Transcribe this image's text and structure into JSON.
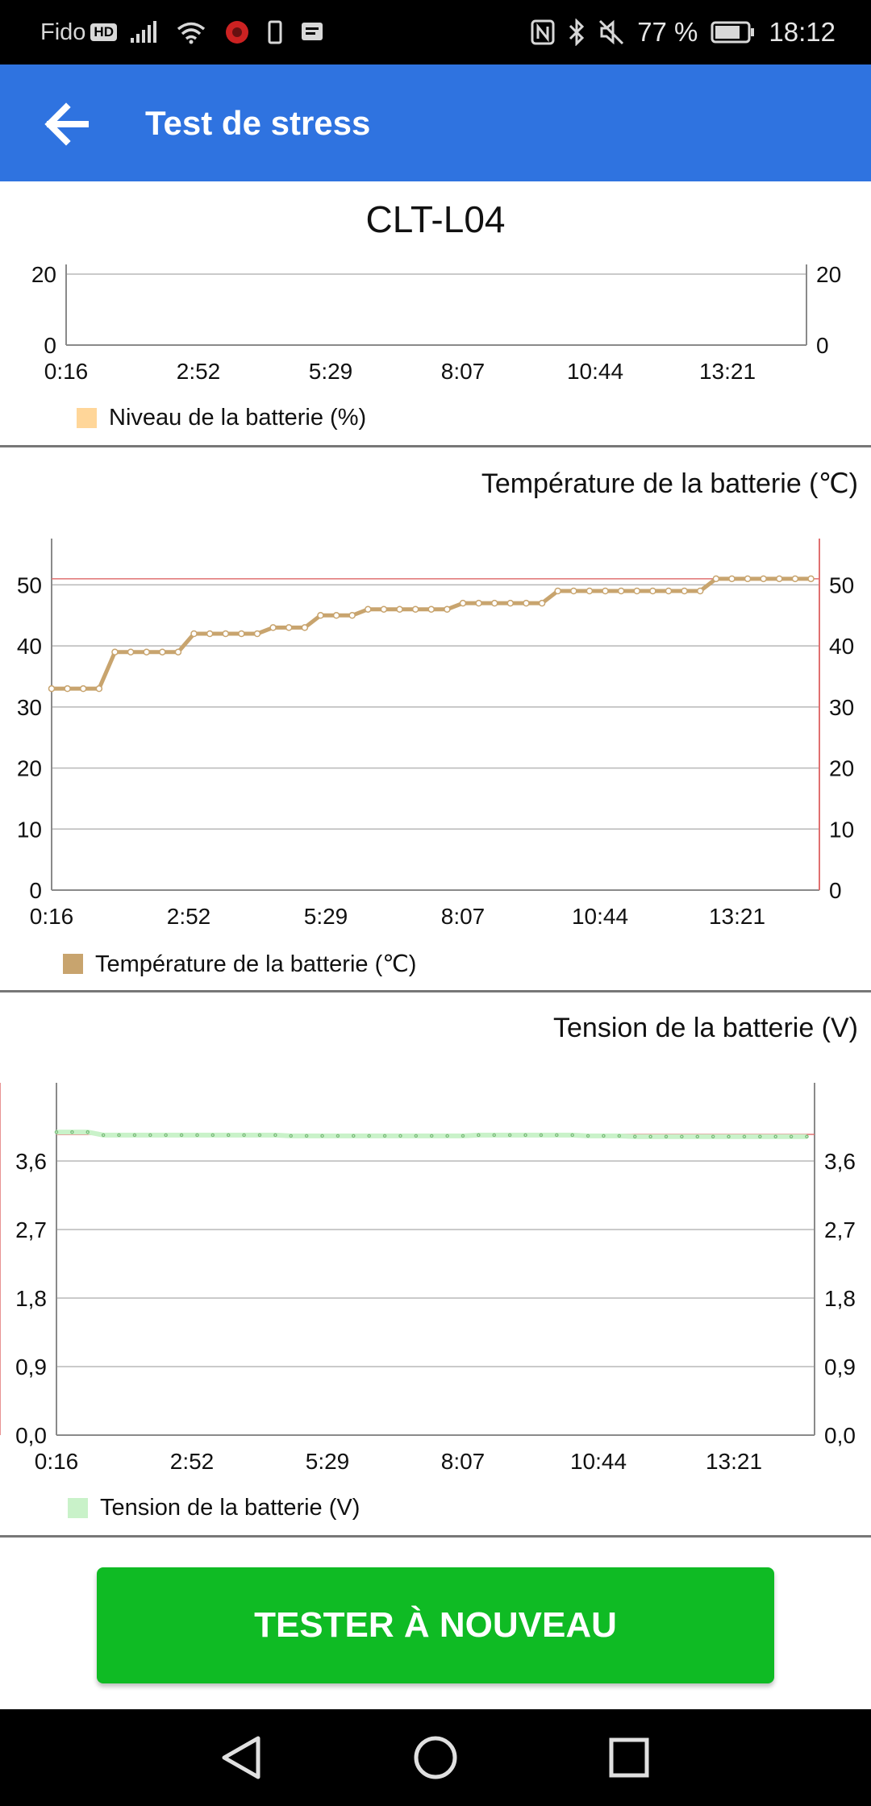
{
  "status_bar": {
    "carrier": "Fido",
    "hd_badge": "HD",
    "battery_percent": "77 %",
    "time": "18:12",
    "left_icons": [
      "signal-icon",
      "wifi-icon",
      "notification-app-icon",
      "phone-icon",
      "message-icon"
    ],
    "right_icons": [
      "nfc-icon",
      "bluetooth-icon",
      "mute-icon",
      "battery-icon"
    ]
  },
  "app_bar": {
    "title": "Test de stress",
    "back_icon": "arrow-left-icon",
    "color": "#2f73e0"
  },
  "device": {
    "name": "CLT-L04"
  },
  "charts": {
    "level": {
      "legend": "Niveau de la batterie (%)",
      "color": "#ffd699"
    },
    "temperature": {
      "title": "Température de la batterie (℃)",
      "legend": "Température de la batterie (℃)",
      "color": "#c8a46e"
    },
    "voltage": {
      "title": "Tension de la batterie (V)",
      "legend": "Tension de la batterie (V)",
      "color": "#c9f2c9"
    }
  },
  "chart_data": [
    {
      "type": "line",
      "title": "",
      "series": [
        {
          "name": "Niveau de la batterie (%)",
          "x": [],
          "y": []
        }
      ],
      "x_ticks": [
        "0:16",
        "2:52",
        "5:29",
        "8:07",
        "10:44",
        "13:21"
      ],
      "y_ticks": [
        "0",
        "20"
      ],
      "ylim": [
        0,
        20
      ],
      "grid": true,
      "legend": "bottom-left"
    },
    {
      "type": "line",
      "title": "Température de la batterie (℃)",
      "series": [
        {
          "name": "Température de la batterie (℃)",
          "x": [
            "0:16",
            "0:34",
            "0:52",
            "1:10",
            "1:28",
            "1:46",
            "2:04",
            "2:22",
            "2:40",
            "2:58",
            "3:16",
            "3:34",
            "3:52",
            "4:10",
            "4:28",
            "4:46",
            "5:04",
            "5:22",
            "5:40",
            "5:58",
            "6:16",
            "6:34",
            "6:52",
            "7:10",
            "7:28",
            "7:46",
            "8:04",
            "8:22",
            "8:40",
            "8:58",
            "9:16",
            "9:34",
            "9:52",
            "10:10",
            "10:28",
            "10:46",
            "11:04",
            "11:22",
            "11:40",
            "11:58",
            "12:16",
            "12:34",
            "12:52",
            "13:10",
            "13:28",
            "13:46",
            "14:04",
            "14:22",
            "14:40"
          ],
          "y": [
            33,
            33,
            33,
            33,
            39,
            39,
            39,
            39,
            39,
            42,
            42,
            42,
            42,
            42,
            43,
            43,
            43,
            45,
            45,
            45,
            46,
            46,
            46,
            46,
            46,
            46,
            47,
            47,
            47,
            47,
            47,
            47,
            49,
            49,
            49,
            49,
            49,
            49,
            49,
            49,
            49,
            49,
            51,
            51,
            51,
            51,
            51,
            51,
            51
          ]
        }
      ],
      "x_ticks": [
        "0:16",
        "2:52",
        "5:29",
        "8:07",
        "10:44",
        "13:21"
      ],
      "y_ticks": [
        "0",
        "10",
        "20",
        "30",
        "40",
        "50"
      ],
      "ylim": [
        0,
        56
      ],
      "reference_line": 51,
      "grid": true,
      "legend": "bottom-left"
    },
    {
      "type": "line",
      "title": "Tension de la batterie (V)",
      "series": [
        {
          "name": "Tension de la batterie (V)",
          "x": [
            "0:16",
            "0:34",
            "0:52",
            "1:10",
            "1:28",
            "1:46",
            "2:04",
            "2:22",
            "2:40",
            "2:58",
            "3:16",
            "3:34",
            "3:52",
            "4:10",
            "4:28",
            "4:46",
            "5:04",
            "5:22",
            "5:40",
            "5:58",
            "6:16",
            "6:34",
            "6:52",
            "7:10",
            "7:28",
            "7:46",
            "8:04",
            "8:22",
            "8:40",
            "8:58",
            "9:16",
            "9:34",
            "9:52",
            "10:10",
            "10:28",
            "10:46",
            "11:04",
            "11:22",
            "11:40",
            "11:58",
            "12:16",
            "12:34",
            "12:52",
            "13:10",
            "13:28",
            "13:46",
            "14:04",
            "14:22",
            "14:40"
          ],
          "y": [
            3.98,
            3.98,
            3.98,
            3.94,
            3.94,
            3.94,
            3.94,
            3.94,
            3.94,
            3.94,
            3.94,
            3.94,
            3.94,
            3.94,
            3.94,
            3.93,
            3.93,
            3.93,
            3.93,
            3.93,
            3.93,
            3.93,
            3.93,
            3.93,
            3.93,
            3.93,
            3.93,
            3.94,
            3.94,
            3.94,
            3.94,
            3.94,
            3.94,
            3.94,
            3.93,
            3.93,
            3.93,
            3.92,
            3.92,
            3.92,
            3.92,
            3.92,
            3.92,
            3.92,
            3.92,
            3.92,
            3.92,
            3.92,
            3.92
          ]
        }
      ],
      "x_ticks": [
        "0:16",
        "2:52",
        "5:29",
        "8:07",
        "10:44",
        "13:21"
      ],
      "y_ticks": [
        "0,0",
        "0,9",
        "1,8",
        "2,7",
        "3,6"
      ],
      "ylim": [
        0,
        4.5
      ],
      "reference_line": 3.95,
      "grid": true,
      "legend": "bottom-left"
    }
  ],
  "retest_button": {
    "label": "TESTER À NOUVEAU",
    "color": "#0fbb24"
  },
  "nav_bar": {
    "icons": [
      "back-triangle-icon",
      "home-circle-icon",
      "recents-square-icon"
    ]
  }
}
